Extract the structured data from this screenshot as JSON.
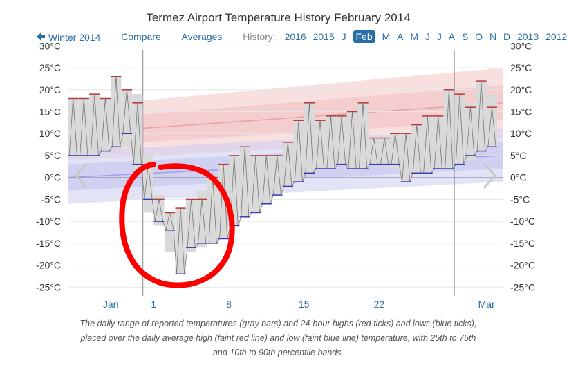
{
  "title": "Termez Airport Temperature History February 2014",
  "nav": {
    "back_label": "Winter 2014",
    "compare_label": "Compare",
    "averages_label": "Averages",
    "history_label": "History:",
    "years_left": [
      "2016",
      "2015"
    ],
    "months": [
      "J",
      "Feb",
      "M",
      "A",
      "M",
      "J",
      "J",
      "A",
      "S",
      "O",
      "N",
      "D"
    ],
    "selected_month": "Feb",
    "years_right": [
      "2013",
      "2012"
    ]
  },
  "caption": {
    "line1": "The daily range of reported temperatures (gray bars) and 24-hour highs (red ticks) and lows (blue ticks),",
    "line2": "placed over the daily average high (faint red line) and low (faint blue line) temperature, with 25th to 75th",
    "line3": "and 10th to 90th percentile bands."
  },
  "colors": {
    "high_tick": "#b23a3a",
    "low_tick": "#3a3ab2",
    "range_bar": "#d9d9d9",
    "avg_high_line": "#e8a0a0",
    "avg_low_line": "#a0a0e8",
    "high_band": "#f3cccc",
    "low_band": "#ccccf0",
    "annotation": "#ff0000",
    "link": "#2a6ea6"
  },
  "icons": {
    "prev": "chevron-left-icon",
    "next": "chevron-right-icon",
    "back": "arrow-left-icon"
  },
  "chart_data": {
    "type": "bar",
    "y_ticks": [
      "30°C",
      "25°C",
      "20°C",
      "15°C",
      "10°C",
      "5°C",
      "0°C",
      "-5°C",
      "-10°C",
      "-15°C",
      "-20°C",
      "-25°C"
    ],
    "ylim": [
      -27,
      31
    ],
    "x_ticks": [
      {
        "label": "Jan",
        "day": -3
      },
      {
        "label": "1",
        "day": 1
      },
      {
        "label": "8",
        "day": 8
      },
      {
        "label": "15",
        "day": 15
      },
      {
        "label": "22",
        "day": 22
      },
      {
        "label": "Mar",
        "day": 32
      }
    ],
    "xlim": [
      -7,
      33.5
    ],
    "month_boundaries": [
      0,
      29
    ],
    "grid": true,
    "days": [
      {
        "d": -6.5,
        "lo": 5,
        "hi": 18,
        "tl": 5,
        "th": 18
      },
      {
        "d": -5.5,
        "lo": 5,
        "hi": 18,
        "tl": 5,
        "th": 18
      },
      {
        "d": -4.5,
        "lo": 5,
        "hi": 19,
        "tl": 5,
        "th": 19
      },
      {
        "d": -3.5,
        "lo": 6,
        "hi": 18,
        "tl": 6,
        "th": 18
      },
      {
        "d": -2.5,
        "lo": 6.5,
        "hi": 23,
        "tl": 7,
        "th": 23
      },
      {
        "d": -1.5,
        "lo": 7,
        "hi": 20,
        "tl": 10,
        "th": 20
      },
      {
        "d": -0.5,
        "lo": 2,
        "hi": 19,
        "tl": 3,
        "th": 17
      },
      {
        "d": 0.5,
        "lo": -8,
        "hi": 5,
        "tl": -5,
        "th": 3
      },
      {
        "d": 1.5,
        "lo": -11,
        "hi": -4,
        "tl": -10,
        "th": -5
      },
      {
        "d": 2.5,
        "lo": -17,
        "hi": -8,
        "tl": -12,
        "th": -8
      },
      {
        "d": 3.5,
        "lo": -22,
        "hi": -7,
        "tl": -22,
        "th": -7
      },
      {
        "d": 4.5,
        "lo": -17,
        "hi": -5,
        "tl": -16,
        "th": -5
      },
      {
        "d": 5.5,
        "lo": -16,
        "hi": -3,
        "tl": -15,
        "th": -5
      },
      {
        "d": 6.5,
        "lo": -15,
        "hi": 0,
        "tl": -15,
        "th": 0
      },
      {
        "d": 7.5,
        "lo": -14,
        "hi": 3,
        "tl": -14,
        "th": 3
      },
      {
        "d": 8.5,
        "lo": -11,
        "hi": 5,
        "tl": -11,
        "th": 5
      },
      {
        "d": 9.5,
        "lo": -9,
        "hi": 7,
        "tl": -9,
        "th": 7
      },
      {
        "d": 10.5,
        "lo": -8,
        "hi": 5,
        "tl": -8,
        "th": 5
      },
      {
        "d": 11.5,
        "lo": -6,
        "hi": 5,
        "tl": -6,
        "th": 5
      },
      {
        "d": 12.5,
        "lo": -4,
        "hi": 5,
        "tl": -4,
        "th": 5
      },
      {
        "d": 13.5,
        "lo": -2,
        "hi": 8,
        "tl": -2,
        "th": 8
      },
      {
        "d": 14.5,
        "lo": -1,
        "hi": 13,
        "tl": -1,
        "th": 13
      },
      {
        "d": 15.5,
        "lo": 1,
        "hi": 17,
        "tl": 1,
        "th": 17
      },
      {
        "d": 16.5,
        "lo": 2,
        "hi": 13,
        "tl": 2,
        "th": 13
      },
      {
        "d": 17.5,
        "lo": 2,
        "hi": 14,
        "tl": 2,
        "th": 14
      },
      {
        "d": 18.5,
        "lo": 3,
        "hi": 14,
        "tl": 3,
        "th": 14
      },
      {
        "d": 19.5,
        "lo": 2,
        "hi": 15,
        "tl": 2,
        "th": 15
      },
      {
        "d": 20.5,
        "lo": 2,
        "hi": 17,
        "tl": 2,
        "th": 17
      },
      {
        "d": 21.5,
        "lo": 3,
        "hi": 9,
        "tl": 3,
        "th": 9
      },
      {
        "d": 22.5,
        "lo": 3,
        "hi": 9,
        "tl": 3,
        "th": 9
      }
    ],
    "days_continued": [
      {
        "d": 23.5,
        "lo": 2,
        "hi": 10,
        "tl": 3,
        "th": 10
      },
      {
        "d": 24.5,
        "lo": -1,
        "hi": 10,
        "tl": -1,
        "th": 10
      },
      {
        "d": 25.5,
        "lo": 1,
        "hi": 12,
        "tl": 1,
        "th": 12
      },
      {
        "d": 26.5,
        "lo": 1,
        "hi": 14,
        "tl": 1,
        "th": 14
      },
      {
        "d": 27.5,
        "lo": 2,
        "hi": 14,
        "tl": 2,
        "th": 14
      },
      {
        "d": 28.5,
        "lo": 2,
        "hi": 20,
        "tl": 2,
        "th": 20
      },
      {
        "d": 29.5,
        "lo": 3,
        "hi": 19,
        "tl": 3,
        "th": 19
      },
      {
        "d": 30.5,
        "lo": 4,
        "hi": 17,
        "tl": 5,
        "th": 16
      },
      {
        "d": 31.5,
        "lo": 6,
        "hi": 22,
        "tl": 6,
        "th": 22
      },
      {
        "d": 32.5,
        "lo": 7,
        "hi": 19,
        "tl": 7,
        "th": 16
      }
    ],
    "avg_high": [
      {
        "d": -7,
        "v": 10
      },
      {
        "d": 33.5,
        "v": 17
      }
    ],
    "avg_low": [
      {
        "d": -7,
        "v": 0
      },
      {
        "d": 33.5,
        "v": 5
      }
    ],
    "high_band_25_75": [
      {
        "d": -7,
        "lo": 7,
        "hi": 13
      },
      {
        "d": 33.5,
        "lo": 13,
        "hi": 21
      }
    ],
    "high_band_10_90": [
      {
        "d": -7,
        "lo": 4,
        "hi": 16
      },
      {
        "d": 33.5,
        "lo": 9,
        "hi": 25
      }
    ],
    "low_band_25_75": [
      {
        "d": -7,
        "lo": -3,
        "hi": 3
      },
      {
        "d": 33.5,
        "lo": 2,
        "hi": 8
      }
    ],
    "low_band_10_90": [
      {
        "d": -7,
        "lo": -6,
        "hi": 6
      },
      {
        "d": 33.5,
        "lo": -1,
        "hi": 11
      }
    ]
  }
}
